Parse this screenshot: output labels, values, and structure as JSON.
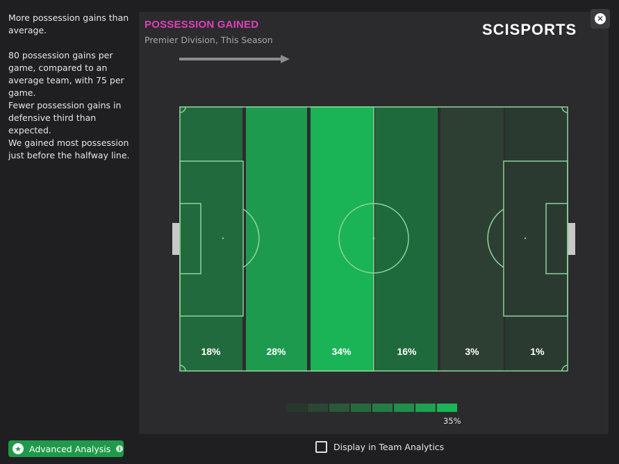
{
  "sidebar": {
    "insights": [
      "More possession gains than average.",
      "80 possession gains per game, compared to an average team, with 75 per game.",
      "Fewer possession gains in defensive third than expected.",
      "We gained most possession just before the halfway line."
    ],
    "advanced_button": "Advanced Analysis"
  },
  "panel": {
    "title": "POSSESSION GAINED",
    "subtitle": "Premier Division, This Season",
    "logo": "SCISPORTS"
  },
  "zones": {
    "labels": [
      "18%",
      "28%",
      "34%",
      "16%",
      "3%",
      "1%"
    ],
    "colors": [
      "#216a3e",
      "#1e9a4f",
      "#1ab356",
      "#1f6a3c",
      "#2d3f33",
      "#2a3a30"
    ]
  },
  "legend": {
    "max_label": "35%",
    "colors": [
      "#26382c",
      "#2b4733",
      "#2a5838",
      "#256a3f",
      "#237d45",
      "#1f8f4b",
      "#1ca250",
      "#18b656"
    ]
  },
  "footer": {
    "display_label": "Display in Team Analytics"
  },
  "colors": {
    "accent_title": "#e040b8",
    "button_green": "#1e9a4a",
    "pitch_line": "#8fd39a"
  }
}
